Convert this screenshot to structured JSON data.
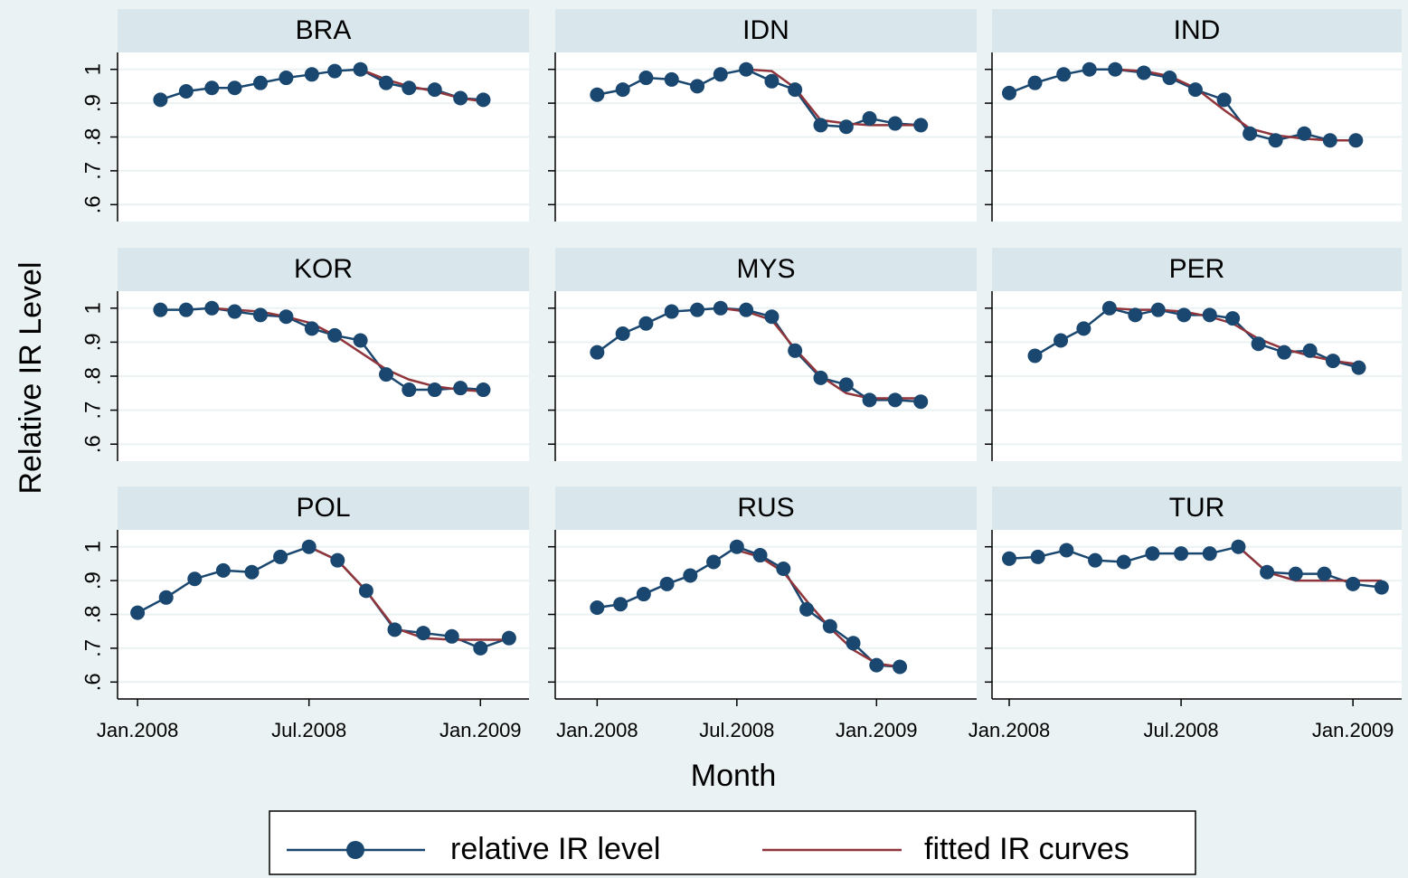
{
  "chart_data": {
    "type": "line",
    "ylabel": "Relative IR Level",
    "xlabel": "Month",
    "series": [
      {
        "name": "relative IR level",
        "color": "#1a476f"
      },
      {
        "name": "fitted IR curves",
        "color": "#90353b"
      }
    ],
    "ylim": [
      0.55,
      1.05
    ],
    "yticks": [
      {
        "value": 0.6,
        "label": ".6"
      },
      {
        "value": 0.7,
        "label": ".7"
      },
      {
        "value": 0.8,
        "label": ".8"
      },
      {
        "value": 0.9,
        "label": ".9"
      },
      1
    ],
    "xticks": [
      {
        "value": 0,
        "label": "Jan.2008"
      },
      {
        "value": 6,
        "label": "Jul.2008"
      },
      {
        "value": 12,
        "label": "Jan.2009"
      }
    ],
    "grid": true,
    "panels": [
      {
        "title": "BRA",
        "xlim": [
          -0.7,
          13.7
        ],
        "x": [
          0.8,
          1.7,
          2.6,
          3.4,
          4.3,
          5.2,
          6.1,
          6.9,
          7.8,
          8.7,
          9.5,
          10.4,
          11.3,
          12.1
        ],
        "series": [
          {
            "values": [
              0.91,
              0.935,
              0.945,
              0.945,
              0.96,
              0.975,
              0.985,
              0.995,
              1.0,
              0.96,
              0.945,
              0.94,
              0.915,
              0.91
            ]
          },
          {
            "values": [
              null,
              null,
              null,
              null,
              null,
              null,
              null,
              null,
              1.0,
              0.97,
              0.95,
              0.935,
              0.915,
              0.905
            ]
          }
        ]
      },
      {
        "title": "IDN",
        "xlim": [
          -1.8,
          16.3
        ],
        "x": [
          0,
          1.1,
          2.1,
          3.2,
          4.3,
          5.3,
          6.4,
          7.5,
          8.5,
          9.6,
          10.7,
          11.7,
          12.8,
          13.9
        ],
        "series": [
          {
            "values": [
              0.925,
              0.94,
              0.975,
              0.97,
              0.95,
              0.985,
              1.0,
              0.965,
              0.94,
              0.835,
              0.83,
              0.855,
              0.84,
              0.835
            ]
          },
          {
            "values": [
              null,
              null,
              null,
              null,
              null,
              null,
              1.0,
              0.995,
              0.945,
              0.85,
              0.84,
              0.835,
              0.835,
              0.835
            ]
          }
        ]
      },
      {
        "title": "IND",
        "xlim": [
          -0.6,
          13.7
        ],
        "x": [
          0,
          0.9,
          1.9,
          2.8,
          3.7,
          4.7,
          5.6,
          6.5,
          7.5,
          8.4,
          9.3,
          10.3,
          11.2,
          12.1
        ],
        "series": [
          {
            "values": [
              0.93,
              0.96,
              0.985,
              1.0,
              1.0,
              0.99,
              0.975,
              0.94,
              0.91,
              0.81,
              0.79,
              0.81,
              0.79,
              0.79
            ]
          },
          {
            "values": [
              null,
              null,
              null,
              null,
              1.0,
              0.995,
              0.98,
              0.945,
              0.88,
              0.825,
              0.805,
              0.795,
              0.79,
              0.79
            ]
          }
        ]
      },
      {
        "title": "KOR",
        "xlim": [
          -0.7,
          13.7
        ],
        "x": [
          0.8,
          1.7,
          2.6,
          3.4,
          4.3,
          5.2,
          6.1,
          6.9,
          7.8,
          8.7,
          9.5,
          10.4,
          11.3,
          12.1
        ],
        "series": [
          {
            "values": [
              0.995,
              0.995,
              1.0,
              0.99,
              0.98,
              0.975,
              0.94,
              0.92,
              0.905,
              0.805,
              0.76,
              0.76,
              0.765,
              0.76
            ]
          },
          {
            "values": [
              null,
              null,
              1.0,
              0.995,
              0.99,
              0.975,
              0.955,
              0.92,
              0.87,
              0.82,
              0.79,
              0.77,
              0.76,
              0.755
            ]
          }
        ]
      },
      {
        "title": "MYS",
        "xlim": [
          -1.8,
          16.3
        ],
        "x": [
          0,
          1.1,
          2.1,
          3.2,
          4.3,
          5.3,
          6.4,
          7.5,
          8.5,
          9.6,
          10.7,
          11.7,
          12.8,
          13.9
        ],
        "series": [
          {
            "values": [
              0.87,
              0.925,
              0.955,
              0.99,
              0.995,
              1.0,
              0.995,
              0.975,
              0.875,
              0.795,
              0.775,
              0.73,
              0.73,
              0.725
            ]
          },
          {
            "values": [
              null,
              null,
              null,
              null,
              null,
              1.0,
              0.99,
              0.965,
              0.88,
              0.8,
              0.75,
              0.735,
              0.735,
              0.735
            ]
          }
        ]
      },
      {
        "title": "PER",
        "xlim": [
          -0.6,
          13.7
        ],
        "x": [
          0.9,
          1.8,
          2.6,
          3.5,
          4.4,
          5.2,
          6.1,
          7.0,
          7.8,
          8.7,
          9.6,
          10.5,
          11.3,
          12.2
        ],
        "series": [
          {
            "values": [
              0.86,
              0.905,
              0.94,
              1.0,
              0.98,
              0.995,
              0.98,
              0.98,
              0.97,
              0.895,
              0.87,
              0.875,
              0.845,
              0.825
            ]
          },
          {
            "values": [
              null,
              null,
              null,
              1.0,
              0.995,
              0.995,
              0.99,
              0.975,
              0.955,
              0.91,
              0.88,
              0.86,
              0.845,
              0.835
            ]
          }
        ]
      },
      {
        "title": "POL",
        "xlim": [
          -0.7,
          13.7
        ],
        "x": [
          0,
          1,
          2,
          3,
          4,
          5,
          6,
          7,
          8,
          9,
          10,
          11,
          12,
          13
        ],
        "series": [
          {
            "values": [
              0.805,
              0.85,
              0.905,
              0.93,
              0.925,
              0.97,
              1.0,
              0.96,
              0.87,
              0.755,
              0.745,
              0.735,
              0.7,
              0.73
            ]
          },
          {
            "values": [
              null,
              null,
              null,
              null,
              null,
              null,
              1.0,
              0.96,
              0.87,
              0.76,
              0.73,
              0.725,
              0.725,
              0.725
            ]
          }
        ]
      },
      {
        "title": "RUS",
        "xlim": [
          -1.8,
          16.3
        ],
        "x": [
          0,
          1,
          2,
          3,
          4,
          5,
          6,
          7,
          8,
          9,
          10,
          11,
          12,
          13
        ],
        "series": [
          {
            "values": [
              0.82,
              0.83,
              0.86,
              0.89,
              0.915,
              0.955,
              1.0,
              0.975,
              0.935,
              0.815,
              0.765,
              0.715,
              0.65,
              0.645
            ]
          },
          {
            "values": [
              null,
              null,
              null,
              null,
              null,
              null,
              0.99,
              0.97,
              0.925,
              0.84,
              0.76,
              0.695,
              0.655,
              0.645
            ]
          }
        ]
      },
      {
        "title": "TUR",
        "xlim": [
          -0.6,
          13.7
        ],
        "x": [
          0,
          1,
          2,
          3,
          4,
          5,
          6,
          7,
          8,
          9,
          10,
          11,
          12,
          13
        ],
        "series": [
          {
            "values": [
              0.965,
              0.97,
              0.99,
              0.96,
              0.955,
              0.98,
              0.98,
              0.98,
              1.0,
              0.925,
              0.92,
              0.92,
              0.89,
              0.88
            ]
          },
          {
            "values": [
              null,
              null,
              null,
              null,
              null,
              null,
              null,
              null,
              1.0,
              0.925,
              0.9,
              0.9,
              0.9,
              0.9
            ]
          }
        ]
      }
    ]
  }
}
